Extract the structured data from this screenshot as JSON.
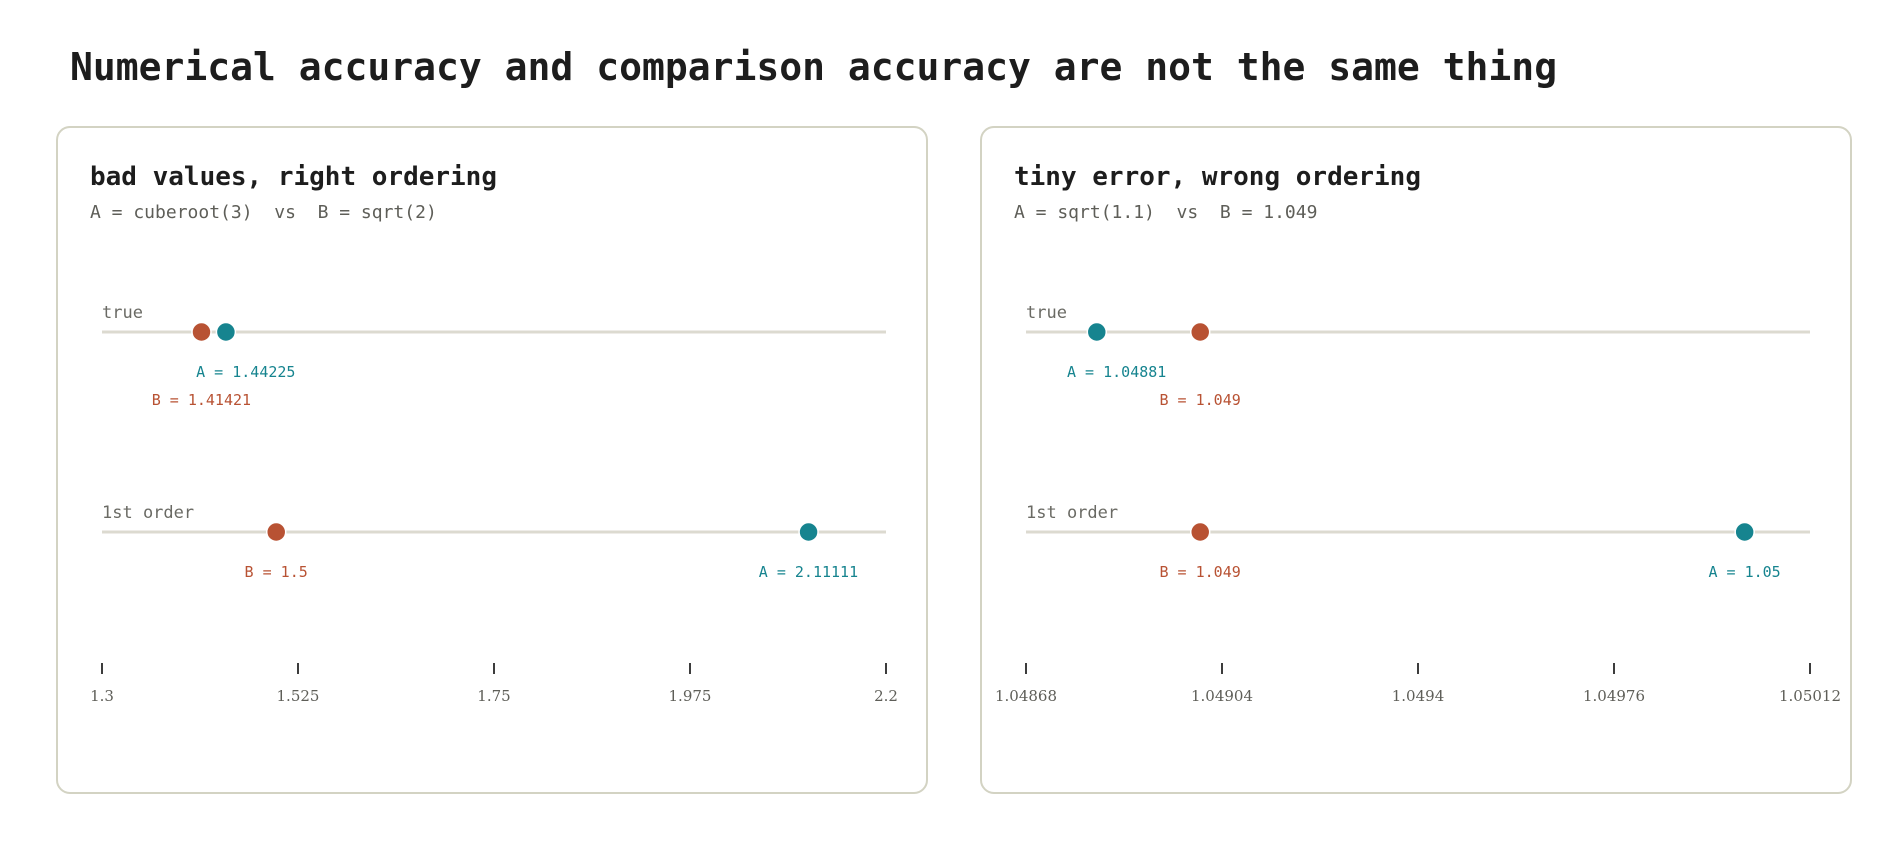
{
  "title": "Numerical accuracy and comparison accuracy are not the same thing",
  "colors": {
    "A": "#16848f",
    "B": "#b85233"
  },
  "panels": [
    {
      "title": "bad values, right ordering",
      "subtitle": "A = cuberoot(3)  vs  B = sqrt(2)",
      "axis": {
        "min": 1.3,
        "max": 2.2,
        "ticks": [
          1.3,
          1.525,
          1.75,
          1.975,
          2.2
        ],
        "tick_labels": [
          "1.3",
          "1.525",
          "1.75",
          "1.975",
          "2.2"
        ]
      },
      "rows": [
        {
          "label": "true",
          "points": [
            {
              "series": "A",
              "value": 1.44225,
              "label": "A = 1.44225"
            },
            {
              "series": "B",
              "value": 1.41421,
              "label": "B = 1.41421"
            }
          ]
        },
        {
          "label": "1st order",
          "points": [
            {
              "series": "A",
              "value": 2.11111,
              "label": "A = 2.11111"
            },
            {
              "series": "B",
              "value": 1.5,
              "label": "B = 1.5"
            }
          ]
        }
      ]
    },
    {
      "title": "tiny error, wrong ordering",
      "subtitle": "A = sqrt(1.1)  vs  B = 1.049",
      "axis": {
        "min": 1.04868,
        "max": 1.05012,
        "ticks": [
          1.04868,
          1.04904,
          1.0494,
          1.04976,
          1.05012
        ],
        "tick_labels": [
          "1.04868",
          "1.04904",
          "1.0494",
          "1.04976",
          "1.05012"
        ]
      },
      "rows": [
        {
          "label": "true",
          "points": [
            {
              "series": "A",
              "value": 1.04881,
              "label": "A = 1.04881"
            },
            {
              "series": "B",
              "value": 1.049,
              "label": "B = 1.049"
            }
          ]
        },
        {
          "label": "1st order",
          "points": [
            {
              "series": "A",
              "value": 1.05,
              "label": "A = 1.05"
            },
            {
              "series": "B",
              "value": 1.049,
              "label": "B = 1.049"
            }
          ]
        }
      ]
    }
  ]
}
